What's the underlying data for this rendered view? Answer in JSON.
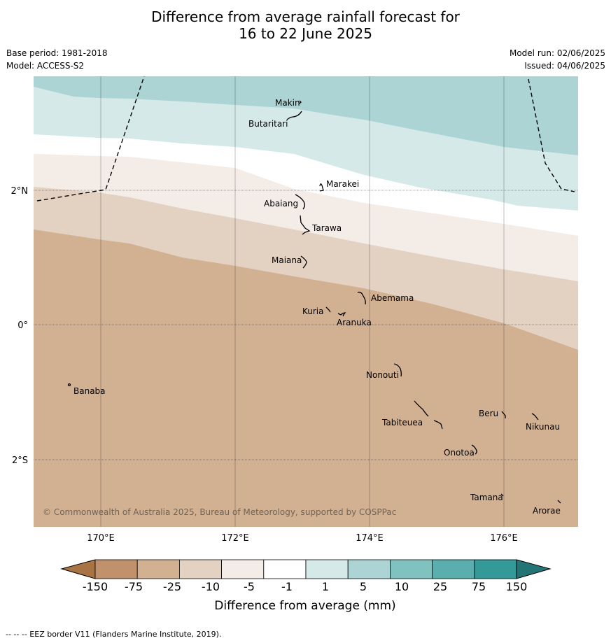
{
  "title_line1": "Difference from average rainfall forecast for",
  "title_line2": "16 to 22 June 2025",
  "meta": {
    "base_period": "Base period: 1981-2018",
    "model": "Model: ACCESS-S2",
    "model_run": "Model run: 02/06/2025",
    "issued": "Issued: 04/06/2025"
  },
  "map": {
    "lat_labels": [
      "2°N",
      "0°",
      "2°S"
    ],
    "lon_labels": [
      "170°E",
      "172°E",
      "174°E",
      "176°E"
    ],
    "copyright": "© Commonwealth of Australia 2025, Bureau of Meteorology, supported by COSPPac",
    "islands": [
      {
        "name": "Makin"
      },
      {
        "name": "Butaritari"
      },
      {
        "name": "Marakei"
      },
      {
        "name": "Abaiang"
      },
      {
        "name": "Tarawa"
      },
      {
        "name": "Maiana"
      },
      {
        "name": "Abemama"
      },
      {
        "name": "Kuria"
      },
      {
        "name": "Aranuka"
      },
      {
        "name": "Banaba"
      },
      {
        "name": "Nonouti"
      },
      {
        "name": "Beru"
      },
      {
        "name": "Nikunau"
      },
      {
        "name": "Tabiteuea"
      },
      {
        "name": "Onotoa"
      },
      {
        "name": "Tamana"
      },
      {
        "name": "Arorae"
      }
    ]
  },
  "colorbar": {
    "labels": [
      "-150",
      "-75",
      "-25",
      "-10",
      "-5",
      "-1",
      "1",
      "5",
      "10",
      "25",
      "75",
      "150"
    ],
    "colors": [
      "#a87443",
      "#c0916b",
      "#d2b193",
      "#e3d1c1",
      "#f4ece7",
      "#ffffff",
      "#d4e9e8",
      "#acd4d4",
      "#80c2bf",
      "#5aaead",
      "#339999",
      "#237575"
    ],
    "title": "Difference from average (mm)"
  },
  "footer": "--  --  -- EEZ border V11 (Flanders Marine Institute, 2019)."
}
